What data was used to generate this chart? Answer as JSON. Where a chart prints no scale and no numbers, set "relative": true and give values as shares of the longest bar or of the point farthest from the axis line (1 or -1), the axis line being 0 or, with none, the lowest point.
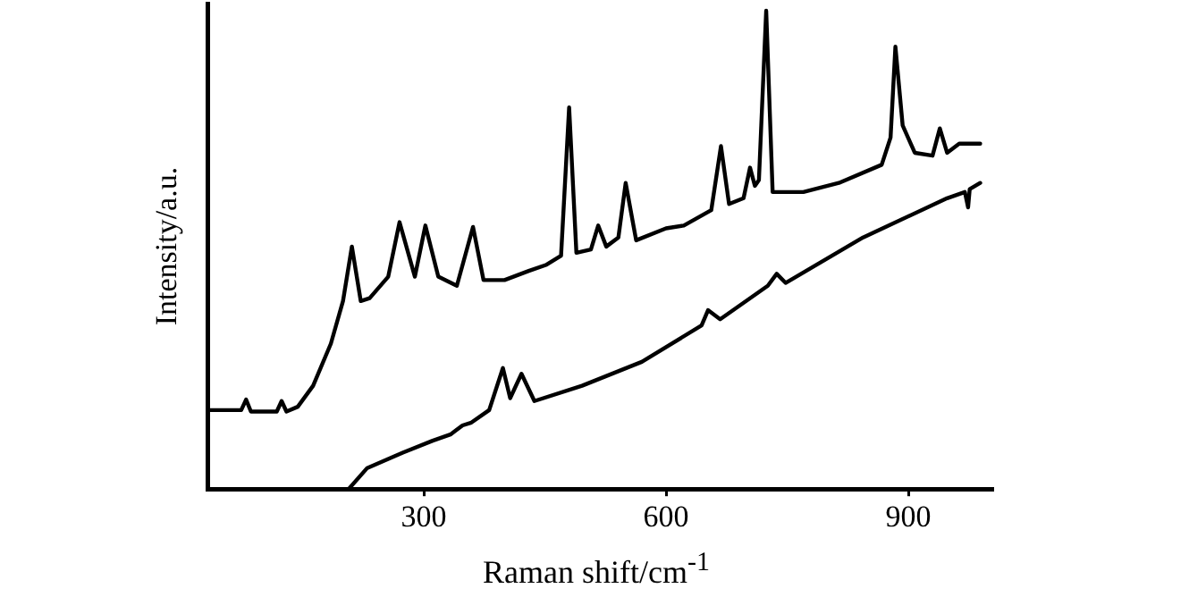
{
  "chart_data": {
    "type": "line",
    "xlabel": "Raman shift/cm$^{-1}$",
    "ylabel": "Intensity/a.u.",
    "relative": true,
    "xlim": [
      33,
      1004
    ],
    "xticks": [
      300,
      600,
      900
    ],
    "grid": false,
    "legend": false,
    "marker": "none",
    "line_style": "solid",
    "series": [
      {
        "color": "#000000",
        "x": [
          33,
          74,
          80,
          86,
          118,
          124,
          130,
          144,
          163,
          185,
          200,
          211,
          222,
          233,
          256,
          270,
          289,
          302,
          318,
          341,
          361,
          374,
          400,
          430,
          452,
          470,
          480,
          489,
          507,
          516,
          526,
          541,
          550,
          563,
          600,
          622,
          656,
          668,
          678,
          696,
          704,
          710,
          715,
          724,
          732,
          770,
          814,
          867,
          878,
          884,
          893,
          908,
          930,
          939,
          948,
          963,
          989
        ],
        "values": [
          0.165,
          0.165,
          0.187,
          0.162,
          0.162,
          0.184,
          0.162,
          0.172,
          0.216,
          0.304,
          0.393,
          0.507,
          0.393,
          0.399,
          0.444,
          0.558,
          0.444,
          0.551,
          0.444,
          0.425,
          0.548,
          0.437,
          0.437,
          0.456,
          0.469,
          0.488,
          0.798,
          0.494,
          0.501,
          0.551,
          0.507,
          0.526,
          0.64,
          0.52,
          0.545,
          0.551,
          0.583,
          0.717,
          0.596,
          0.608,
          0.672,
          0.634,
          0.646,
          1.0,
          0.621,
          0.621,
          0.64,
          0.678,
          0.735,
          0.925,
          0.76,
          0.703,
          0.697,
          0.754,
          0.703,
          0.722,
          0.722
        ]
      },
      {
        "color": "#000000",
        "x": [
          207,
          230,
          274,
          311,
          333,
          348,
          359,
          381,
          398,
          407,
          421,
          437,
          496,
          570,
          644,
          652,
          667,
          726,
          737,
          748,
          844,
          948,
          970,
          974,
          976,
          989
        ],
        "values": [
          0,
          0.044,
          0.076,
          0.101,
          0.114,
          0.133,
          0.139,
          0.165,
          0.253,
          0.19,
          0.241,
          0.184,
          0.216,
          0.266,
          0.342,
          0.374,
          0.355,
          0.425,
          0.45,
          0.431,
          0.526,
          0.608,
          0.621,
          0.589,
          0.627,
          0.64
        ]
      }
    ]
  }
}
